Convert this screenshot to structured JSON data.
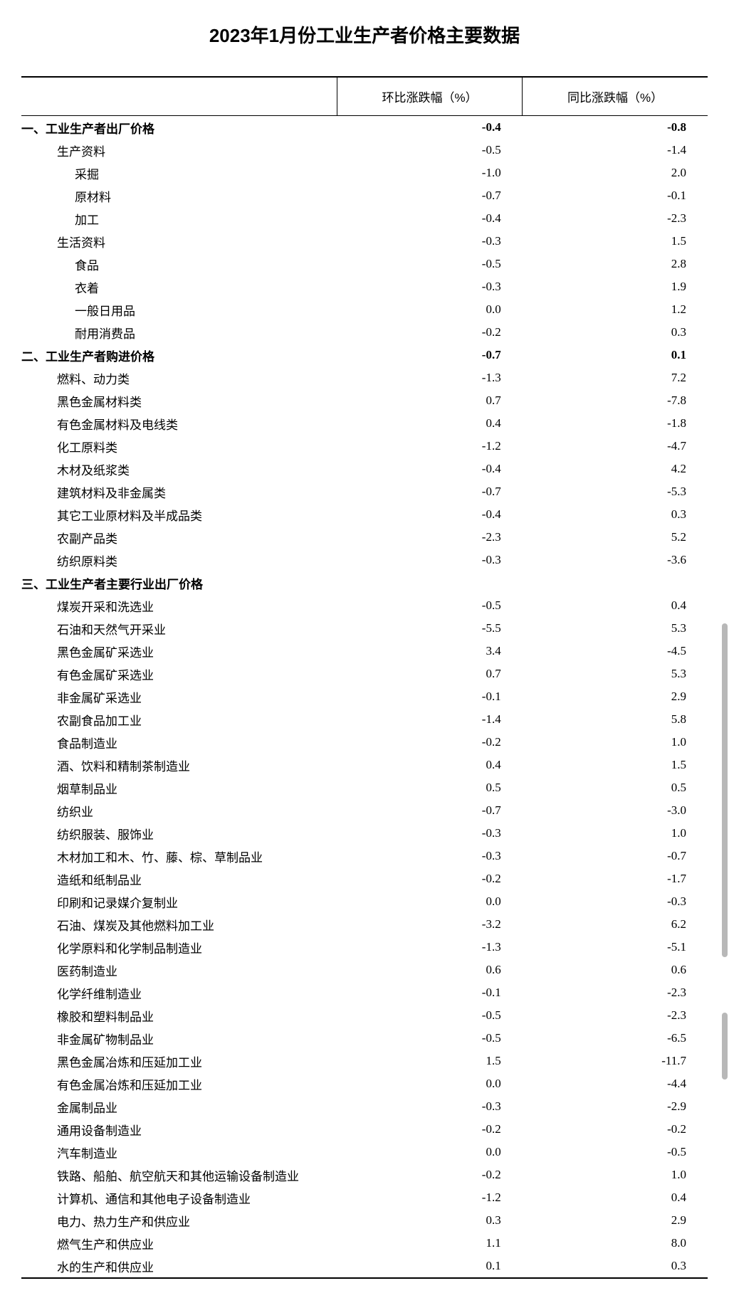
{
  "title": "2023年1月份工业生产者价格主要数据",
  "columns": {
    "label": "",
    "mom": "环比涨跌幅（%）",
    "yoy": "同比涨跌幅（%）"
  },
  "table": {
    "col_widths_pct": [
      46,
      27,
      27
    ],
    "font_size": 17,
    "title_font_size": 26,
    "border_color": "#000000",
    "background_color": "#ffffff",
    "text_color": "#000000"
  },
  "rows": [
    {
      "label": "一、工业生产者出厂价格",
      "mom": "-0.4",
      "yoy": "-0.8",
      "indent": 0,
      "bold": true
    },
    {
      "label": "生产资料",
      "mom": "-0.5",
      "yoy": "-1.4",
      "indent": 1,
      "bold": false
    },
    {
      "label": "采掘",
      "mom": "-1.0",
      "yoy": "2.0",
      "indent": 2,
      "bold": false
    },
    {
      "label": "原材料",
      "mom": "-0.7",
      "yoy": "-0.1",
      "indent": 2,
      "bold": false
    },
    {
      "label": "加工",
      "mom": "-0.4",
      "yoy": "-2.3",
      "indent": 2,
      "bold": false
    },
    {
      "label": "生活资料",
      "mom": "-0.3",
      "yoy": "1.5",
      "indent": 1,
      "bold": false
    },
    {
      "label": "食品",
      "mom": "-0.5",
      "yoy": "2.8",
      "indent": 2,
      "bold": false
    },
    {
      "label": "衣着",
      "mom": "-0.3",
      "yoy": "1.9",
      "indent": 2,
      "bold": false
    },
    {
      "label": "一般日用品",
      "mom": "0.0",
      "yoy": "1.2",
      "indent": 2,
      "bold": false
    },
    {
      "label": "耐用消费品",
      "mom": "-0.2",
      "yoy": "0.3",
      "indent": 2,
      "bold": false
    },
    {
      "label": "二、工业生产者购进价格",
      "mom": "-0.7",
      "yoy": "0.1",
      "indent": 0,
      "bold": true
    },
    {
      "label": "燃料、动力类",
      "mom": "-1.3",
      "yoy": "7.2",
      "indent": 1,
      "bold": false
    },
    {
      "label": "黑色金属材料类",
      "mom": "0.7",
      "yoy": "-7.8",
      "indent": 1,
      "bold": false
    },
    {
      "label": "有色金属材料及电线类",
      "mom": "0.4",
      "yoy": "-1.8",
      "indent": 1,
      "bold": false
    },
    {
      "label": "化工原料类",
      "mom": "-1.2",
      "yoy": "-4.7",
      "indent": 1,
      "bold": false
    },
    {
      "label": "木材及纸浆类",
      "mom": "-0.4",
      "yoy": "4.2",
      "indent": 1,
      "bold": false
    },
    {
      "label": "建筑材料及非金属类",
      "mom": "-0.7",
      "yoy": "-5.3",
      "indent": 1,
      "bold": false
    },
    {
      "label": "其它工业原材料及半成品类",
      "mom": "-0.4",
      "yoy": "0.3",
      "indent": 1,
      "bold": false
    },
    {
      "label": "农副产品类",
      "mom": "-2.3",
      "yoy": "5.2",
      "indent": 1,
      "bold": false
    },
    {
      "label": "纺织原料类",
      "mom": "-0.3",
      "yoy": "-3.6",
      "indent": 1,
      "bold": false
    },
    {
      "label": "三、工业生产者主要行业出厂价格",
      "mom": "",
      "yoy": "",
      "indent": 0,
      "bold": true
    },
    {
      "label": "煤炭开采和洗选业",
      "mom": "-0.5",
      "yoy": "0.4",
      "indent": 1,
      "bold": false
    },
    {
      "label": "石油和天然气开采业",
      "mom": "-5.5",
      "yoy": "5.3",
      "indent": 1,
      "bold": false
    },
    {
      "label": "黑色金属矿采选业",
      "mom": "3.4",
      "yoy": "-4.5",
      "indent": 1,
      "bold": false
    },
    {
      "label": "有色金属矿采选业",
      "mom": "0.7",
      "yoy": "5.3",
      "indent": 1,
      "bold": false
    },
    {
      "label": "非金属矿采选业",
      "mom": "-0.1",
      "yoy": "2.9",
      "indent": 1,
      "bold": false
    },
    {
      "label": "农副食品加工业",
      "mom": "-1.4",
      "yoy": "5.8",
      "indent": 1,
      "bold": false
    },
    {
      "label": "食品制造业",
      "mom": "-0.2",
      "yoy": "1.0",
      "indent": 1,
      "bold": false
    },
    {
      "label": "酒、饮料和精制茶制造业",
      "mom": "0.4",
      "yoy": "1.5",
      "indent": 1,
      "bold": false
    },
    {
      "label": "烟草制品业",
      "mom": "0.5",
      "yoy": "0.5",
      "indent": 1,
      "bold": false
    },
    {
      "label": "纺织业",
      "mom": "-0.7",
      "yoy": "-3.0",
      "indent": 1,
      "bold": false
    },
    {
      "label": "纺织服装、服饰业",
      "mom": "-0.3",
      "yoy": "1.0",
      "indent": 1,
      "bold": false
    },
    {
      "label": "木材加工和木、竹、藤、棕、草制品业",
      "mom": "-0.3",
      "yoy": "-0.7",
      "indent": 1,
      "bold": false
    },
    {
      "label": "造纸和纸制品业",
      "mom": "-0.2",
      "yoy": "-1.7",
      "indent": 1,
      "bold": false
    },
    {
      "label": "印刷和记录媒介复制业",
      "mom": "0.0",
      "yoy": "-0.3",
      "indent": 1,
      "bold": false
    },
    {
      "label": "石油、煤炭及其他燃料加工业",
      "mom": "-3.2",
      "yoy": "6.2",
      "indent": 1,
      "bold": false
    },
    {
      "label": "化学原料和化学制品制造业",
      "mom": "-1.3",
      "yoy": "-5.1",
      "indent": 1,
      "bold": false
    },
    {
      "label": "医药制造业",
      "mom": "0.6",
      "yoy": "0.6",
      "indent": 1,
      "bold": false
    },
    {
      "label": "化学纤维制造业",
      "mom": "-0.1",
      "yoy": "-2.3",
      "indent": 1,
      "bold": false
    },
    {
      "label": "橡胶和塑料制品业",
      "mom": "-0.5",
      "yoy": "-2.3",
      "indent": 1,
      "bold": false
    },
    {
      "label": "非金属矿物制品业",
      "mom": "-0.5",
      "yoy": "-6.5",
      "indent": 1,
      "bold": false
    },
    {
      "label": "黑色金属冶炼和压延加工业",
      "mom": "1.5",
      "yoy": "-11.7",
      "indent": 1,
      "bold": false
    },
    {
      "label": "有色金属冶炼和压延加工业",
      "mom": "0.0",
      "yoy": "-4.4",
      "indent": 1,
      "bold": false
    },
    {
      "label": "金属制品业",
      "mom": "-0.3",
      "yoy": "-2.9",
      "indent": 1,
      "bold": false
    },
    {
      "label": "通用设备制造业",
      "mom": "-0.2",
      "yoy": "-0.2",
      "indent": 1,
      "bold": false
    },
    {
      "label": "汽车制造业",
      "mom": "0.0",
      "yoy": "-0.5",
      "indent": 1,
      "bold": false
    },
    {
      "label": "铁路、船舶、航空航天和其他运输设备制造业",
      "mom": "-0.2",
      "yoy": "1.0",
      "indent": 1,
      "bold": false
    },
    {
      "label": "计算机、通信和其他电子设备制造业",
      "mom": "-1.2",
      "yoy": "0.4",
      "indent": 1,
      "bold": false
    },
    {
      "label": "电力、热力生产和供应业",
      "mom": "0.3",
      "yoy": "2.9",
      "indent": 1,
      "bold": false
    },
    {
      "label": "燃气生产和供应业",
      "mom": "1.1",
      "yoy": "8.0",
      "indent": 1,
      "bold": false
    },
    {
      "label": "水的生产和供应业",
      "mom": "0.1",
      "yoy": "0.3",
      "indent": 1,
      "bold": false
    }
  ],
  "scrollbar": {
    "thumb1_top_pct": 56,
    "thumb1_height_pct": 30,
    "thumb2_top_pct": 91,
    "thumb2_height_pct": 6,
    "color": "#b8b8b8"
  }
}
